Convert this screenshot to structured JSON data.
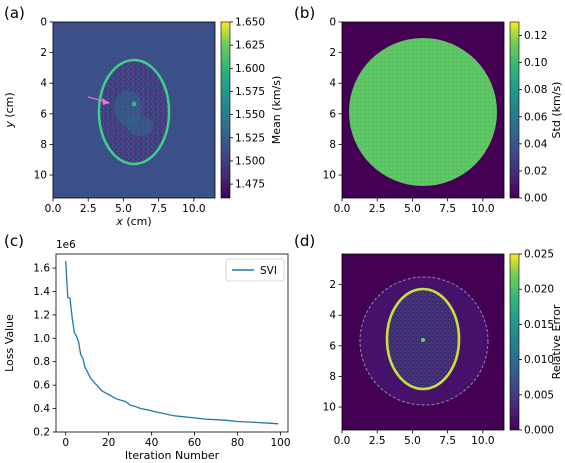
{
  "panels": [
    {
      "letter": "(a)",
      "type": "heatmap",
      "description_colormap": "viridis",
      "x_ticks": [
        "0.0",
        "2.5",
        "5.0",
        "7.5",
        "10.0"
      ],
      "y_ticks": [
        "0",
        "2",
        "4",
        "6",
        "8",
        "10"
      ],
      "x_tick_values": [
        0,
        2.5,
        5,
        7.5,
        10
      ],
      "y_tick_values": [
        0,
        2,
        4,
        6,
        8,
        10
      ],
      "xlim": [
        0,
        11.5
      ],
      "ylim": [
        11.5,
        0
      ],
      "xlabel_var": "x",
      "xlabel_unit": " (cm)",
      "ylabel_var": "y",
      "ylabel_unit": " (cm)",
      "colorbar_label": "Mean (km/s)",
      "colorbar_ticks": [
        "1.650",
        "1.625",
        "1.600",
        "1.575",
        "1.550",
        "1.525",
        "1.500",
        "1.475"
      ],
      "colorbar_tick_values": [
        1.65,
        1.625,
        1.6,
        1.575,
        1.55,
        1.525,
        1.5,
        1.475
      ],
      "colorbar_range": [
        1.46,
        1.65
      ]
    },
    {
      "letter": "(b)",
      "type": "heatmap",
      "x_ticks": [
        "0.0",
        "2.5",
        "5.0",
        "7.5",
        "10.0"
      ],
      "y_ticks": [
        "0",
        "2",
        "4",
        "6",
        "8",
        "10"
      ],
      "x_tick_values": [
        0,
        2.5,
        5,
        7.5,
        10
      ],
      "y_tick_values": [
        0,
        2,
        4,
        6,
        8,
        10
      ],
      "xlim": [
        0,
        11.5
      ],
      "ylim": [
        11.5,
        0
      ],
      "colorbar_label": "Std (km/s)",
      "colorbar_ticks": [
        "0.12",
        "0.10",
        "0.08",
        "0.06",
        "0.04",
        "0.02",
        "0.00"
      ],
      "colorbar_tick_values": [
        0.12,
        0.1,
        0.08,
        0.06,
        0.04,
        0.02,
        0.0
      ],
      "colorbar_range": [
        0,
        0.13
      ]
    },
    {
      "letter": "(c)",
      "type": "line",
      "x_ticks": [
        "0",
        "20",
        "40",
        "60",
        "80",
        "100"
      ],
      "x_tick_values": [
        0,
        20,
        40,
        60,
        80,
        100
      ],
      "y_ticks": [
        "0.2",
        "0.4",
        "0.6",
        "0.8",
        "1.0",
        "1.2",
        "1.4",
        "1.6"
      ],
      "y_tick_values": [
        0.2,
        0.4,
        0.6,
        0.8,
        1.0,
        1.2,
        1.4,
        1.6
      ],
      "xlim": [
        -4.5,
        103.5
      ],
      "ylim": [
        0.2,
        1.72
      ],
      "offset_text": "1e6",
      "xlabel": "Iteration Number",
      "ylabel": "Loss Value",
      "legend": "SVI",
      "legend_position": "top-right"
    },
    {
      "letter": "(d)",
      "type": "heatmap",
      "x_ticks": [
        "0.0",
        "2.5",
        "5.0",
        "7.5",
        "10.0"
      ],
      "y_ticks": [
        "2",
        "4",
        "6",
        "8",
        "10"
      ],
      "x_tick_values": [
        0,
        2.5,
        5,
        7.5,
        10
      ],
      "y_tick_values": [
        2,
        4,
        6,
        8,
        10
      ],
      "xlim": [
        0,
        11.5
      ],
      "ylim": [
        11.5,
        0
      ],
      "colorbar_label": "Relative Error",
      "colorbar_ticks": [
        "0.025",
        "0.020",
        "0.015",
        "0.010",
        "0.005",
        "0.000"
      ],
      "colorbar_tick_values": [
        0.025,
        0.02,
        0.015,
        0.01,
        0.005,
        0.0
      ],
      "colorbar_range": [
        0,
        0.025
      ]
    }
  ],
  "chart_data": {
    "type": "line",
    "series": [
      {
        "name": "SVI",
        "color": "#1f77b4",
        "x": [
          0,
          1,
          2,
          3,
          4,
          5,
          6,
          7,
          8,
          9,
          10,
          11,
          12,
          13,
          14,
          15,
          16,
          17,
          18,
          19,
          20,
          22,
          24,
          26,
          28,
          30,
          32,
          35,
          38,
          40,
          45,
          50,
          55,
          60,
          65,
          70,
          75,
          80,
          85,
          90,
          95,
          99
        ],
        "y": [
          1.66,
          1.35,
          1.34,
          1.18,
          1.05,
          1.02,
          0.97,
          0.86,
          0.83,
          0.75,
          0.72,
          0.68,
          0.65,
          0.63,
          0.61,
          0.59,
          0.57,
          0.55,
          0.54,
          0.53,
          0.52,
          0.5,
          0.48,
          0.47,
          0.46,
          0.43,
          0.42,
          0.4,
          0.39,
          0.38,
          0.36,
          0.34,
          0.33,
          0.32,
          0.31,
          0.305,
          0.3,
          0.29,
          0.285,
          0.28,
          0.275,
          0.27
        ]
      }
    ],
    "xlabel": "Iteration Number",
    "ylabel": "Loss Value",
    "xlim": [
      -4.5,
      103.5
    ],
    "ylim": [
      0.2,
      1.72
    ],
    "grid": false,
    "legend": "top-right"
  }
}
